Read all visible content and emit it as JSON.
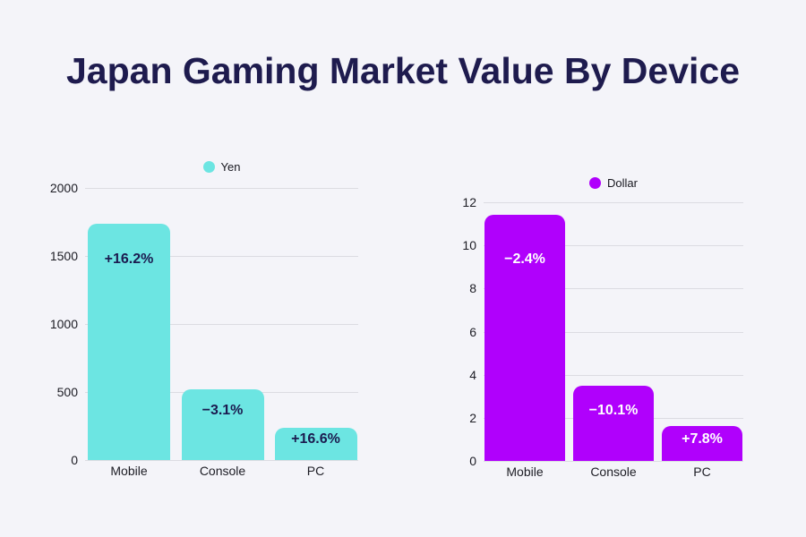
{
  "page": {
    "title": "Japan Gaming Market Value By Device",
    "background_color": "#f4f4f9",
    "title_color": "#1e1b4e"
  },
  "chart_data": [
    {
      "type": "bar",
      "name": "yen",
      "legend": "Yen",
      "legend_position": "top",
      "bar_color": "#6ce5e2",
      "bar_label_color": "#1b1b4f",
      "categories": [
        "Mobile",
        "Console",
        "PC"
      ],
      "values": [
        1740,
        520,
        240
      ],
      "bar_labels": [
        "+16.2%",
        "−3.1%",
        "+16.6%"
      ],
      "xlabel": "",
      "ylabel": "",
      "ylim": [
        0,
        2000
      ],
      "yticks": [
        2000,
        1500,
        1000,
        500,
        0
      ],
      "grid": true
    },
    {
      "type": "bar",
      "name": "dollar",
      "legend": "Dollar",
      "legend_position": "top",
      "bar_color": "#b000fc",
      "bar_label_color": "#ffffff",
      "categories": [
        "Mobile",
        "Console",
        "PC"
      ],
      "values": [
        11.4,
        3.5,
        1.6
      ],
      "bar_labels": [
        "−2.4%",
        "−10.1%",
        "+7.8%"
      ],
      "xlabel": "",
      "ylabel": "",
      "ylim": [
        0,
        12
      ],
      "yticks": [
        12,
        10,
        8,
        6,
        4,
        2,
        0
      ],
      "grid": true
    }
  ]
}
